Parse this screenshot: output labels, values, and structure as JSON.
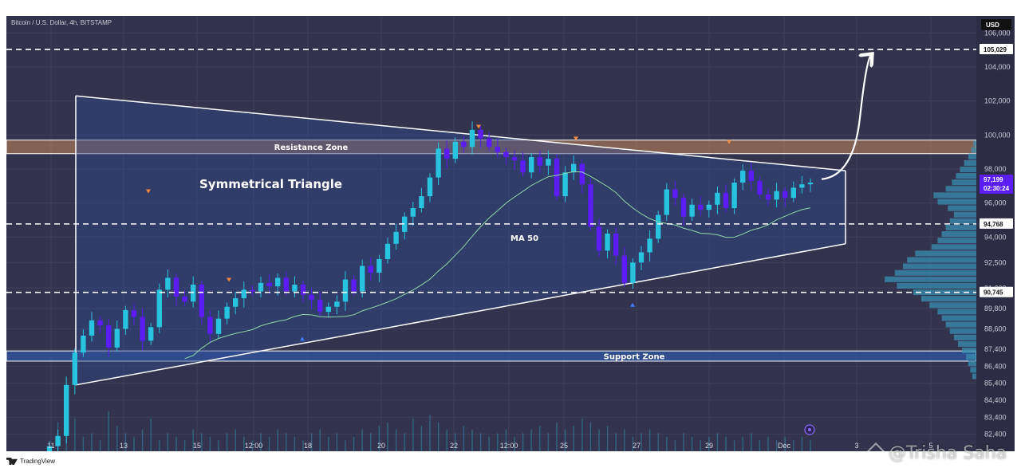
{
  "symbol_title": "Bitcoin / U.S. Dollar, 4h, BITSTAMP",
  "currency": "USD",
  "brand": "TradingView",
  "watermark": "@Trisha Saha",
  "colors": {
    "background": "#33334d",
    "candle_up": "#27c3df",
    "candle_down": "#5b1cf5",
    "resistance_zone": "#c98a5b",
    "support_zone": "#2f5aa6",
    "triangle_fill": "#2e4a8c",
    "ma_line": "#8fd6a8",
    "pattern_lines": "#ffffff"
  },
  "chart_data": {
    "type": "candlestick",
    "title": "Bitcoin / U.S. Dollar, 4h, BITSTAMP",
    "x_ticks": [
      "11",
      "13",
      "15",
      "12:00",
      "18",
      "20",
      "22",
      "12:00",
      "25",
      "27",
      "29",
      "Dec",
      "3",
      "5"
    ],
    "y_ticks": [
      82400,
      83400,
      84400,
      85400,
      86400,
      87400,
      88600,
      89800,
      91000,
      92500,
      94000,
      96000,
      98000,
      100000,
      102000,
      104000,
      106000
    ],
    "ylim": [
      81400,
      107000
    ],
    "price_labels": {
      "target": "105,029",
      "current": "97,199",
      "countdown": "02:30:24",
      "level_mid": "94,768",
      "level_low": "90,745"
    },
    "horizontal_levels": [
      105029,
      94768,
      90745
    ],
    "zones": {
      "resistance": {
        "label": "Resistance Zone",
        "from": 98900,
        "to": 99700
      },
      "support": {
        "label": "Support Zone",
        "from": 86700,
        "to": 87300
      }
    },
    "pattern": {
      "label": "Symmetrical Triangle",
      "upper_line": [
        [
          0,
          102300
        ],
        [
          60,
          97900
        ]
      ],
      "lower_line": [
        [
          0,
          85300
        ],
        [
          60,
          93600
        ]
      ]
    },
    "indicators": [
      {
        "name": "MA 50"
      }
    ],
    "close_series": [
      81700,
      82300,
      85300,
      87200,
      88200,
      89100,
      88800,
      87500,
      88600,
      89700,
      89300,
      87900,
      88700,
      90900,
      91600,
      90500,
      90200,
      91200,
      89300,
      88300,
      89200,
      89900,
      90400,
      90900,
      90800,
      91300,
      91100,
      91600,
      90800,
      91200,
      90600,
      90300,
      89600,
      89900,
      90200,
      91500,
      90800,
      92300,
      91900,
      92700,
      93600,
      94300,
      95200,
      95700,
      96400,
      97500,
      99200,
      98600,
      99600,
      99300,
      100300,
      99800,
      99300,
      99000,
      98700,
      98500,
      97800,
      98700,
      98200,
      98600,
      96400,
      97800,
      98300,
      97100,
      94600,
      93200,
      94200,
      92900,
      91300,
      92500,
      93100,
      93900,
      95300,
      96800,
      96300,
      95200,
      95900,
      95600,
      95900,
      96600,
      95700,
      97200,
      97900,
      97300,
      96500,
      96200,
      96700,
      96300,
      96900,
      97100,
      97200
    ],
    "volume": [
      3,
      8,
      6,
      9,
      4,
      5,
      3,
      11,
      7,
      5,
      4,
      6,
      9,
      3,
      5,
      4,
      3,
      6,
      5,
      4,
      3,
      5,
      6,
      4,
      3,
      5,
      4,
      6,
      5,
      4,
      3,
      5,
      6,
      4,
      5,
      3,
      4,
      6,
      5,
      7,
      8,
      6,
      5,
      9,
      7,
      10,
      8,
      6,
      5,
      7,
      6,
      5,
      4,
      5,
      6,
      4,
      5,
      6,
      7,
      5,
      8,
      6,
      7,
      9,
      8,
      6,
      7,
      5,
      6,
      4,
      5,
      6,
      5,
      4,
      3,
      5,
      4,
      3,
      4,
      5,
      4,
      3,
      4,
      5,
      3,
      4,
      3,
      4,
      3,
      4,
      3
    ],
    "volume_profile": [
      3,
      5,
      8,
      12,
      16,
      20,
      24,
      30,
      42,
      38,
      28,
      22,
      26,
      30,
      34,
      38,
      44,
      60,
      68,
      72,
      80,
      90,
      78,
      62,
      54,
      46,
      38,
      34,
      30,
      26,
      22,
      18,
      14,
      10,
      8,
      6,
      4
    ]
  }
}
